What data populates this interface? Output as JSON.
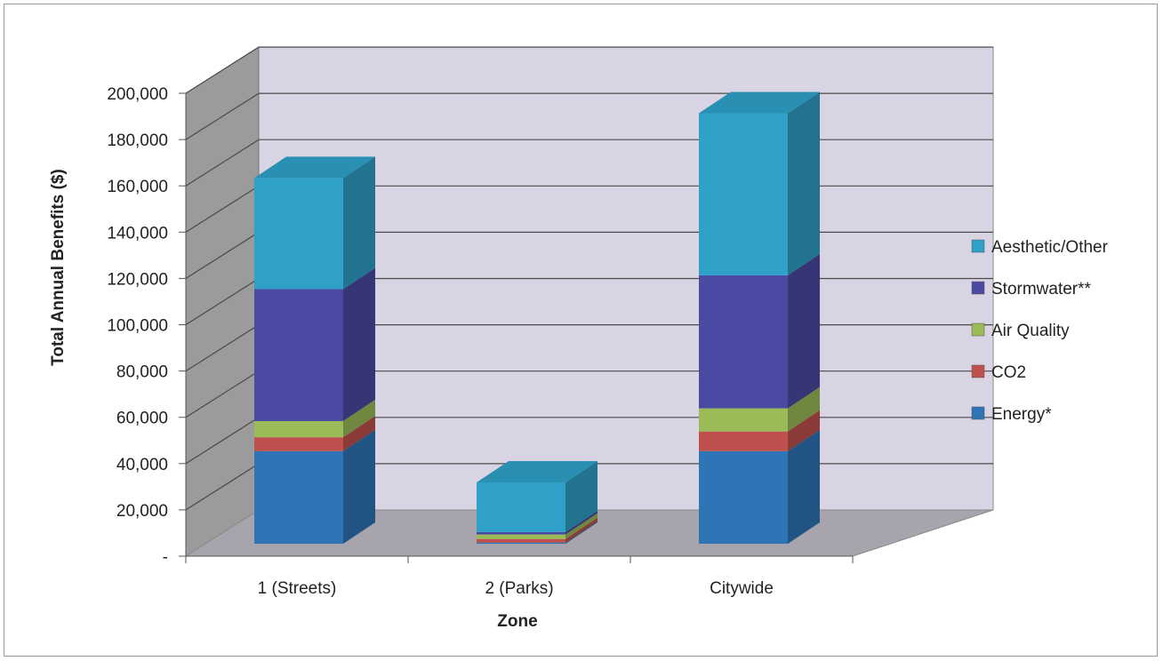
{
  "chart_data": {
    "type": "bar",
    "stacked": true,
    "three_d": true,
    "categories": [
      "1 (Streets)",
      "2 (Parks)",
      "Citywide"
    ],
    "series": [
      {
        "name": "Energy*",
        "color": "#2e75b6",
        "values": [
          40000,
          500,
          40000
        ]
      },
      {
        "name": "CO2",
        "color": "#c0504d",
        "values": [
          6000,
          1500,
          8500
        ]
      },
      {
        "name": "Air Quality",
        "color": "#9bbb59",
        "values": [
          7000,
          2000,
          10000
        ]
      },
      {
        "name": "Stormwater**",
        "color": "#4b4aa3",
        "values": [
          57000,
          1000,
          57500
        ]
      },
      {
        "name": "Aesthetic/Other",
        "color": "#2fa0c7",
        "values": [
          48000,
          21500,
          70000
        ]
      }
    ],
    "ylabel": "Total Annual Benefits ($)",
    "xlabel": "Zone",
    "ylim": [
      0,
      200000
    ],
    "yticks": [
      "-",
      "20,000",
      "40,000",
      "60,000",
      "80,000",
      "100,000",
      "120,000",
      "140,000",
      "160,000",
      "180,000",
      "200,000"
    ],
    "grid": true,
    "legend": "right"
  }
}
